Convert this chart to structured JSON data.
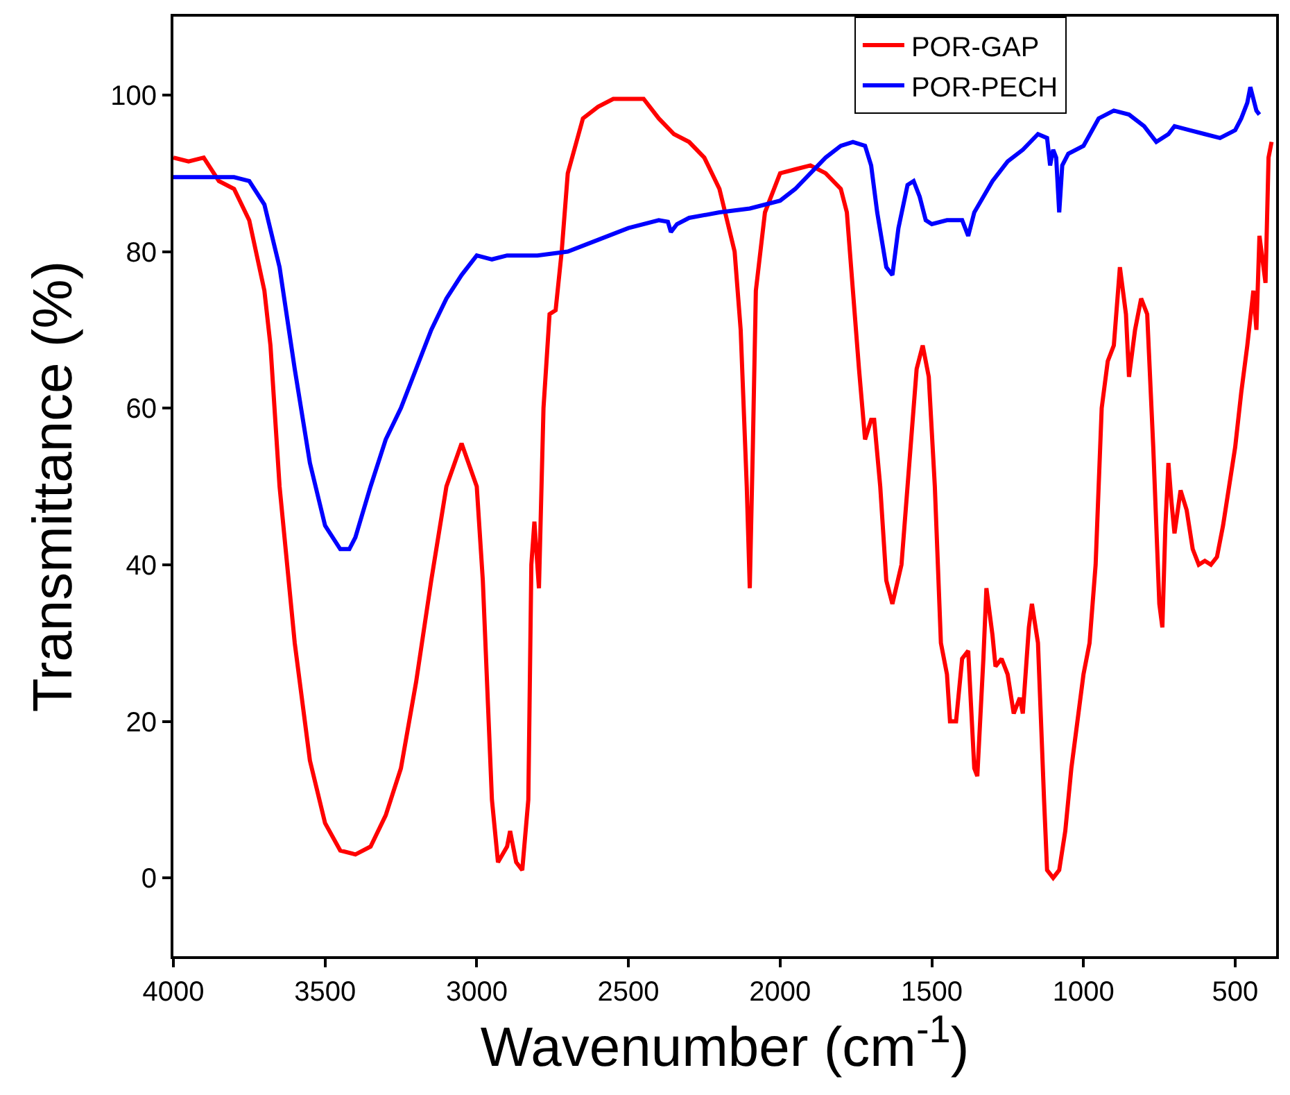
{
  "chart_data": {
    "type": "line",
    "xlabel": "Wavenumber (cm$^{-1}$)",
    "ylabel": "Transmittance (%)",
    "xlim": [
      4000,
      365
    ],
    "xticks": [
      4000,
      3500,
      3000,
      2500,
      2000,
      1500,
      1000,
      500
    ],
    "ylim": [
      -10,
      110
    ],
    "yticks": [
      0,
      20,
      40,
      60,
      80,
      100
    ],
    "legend": "top right",
    "marker": "none",
    "line_style": "solid",
    "series": [
      {
        "name": "POR-GAP",
        "color": "#ff0000",
        "x": [
          4000,
          3950,
          3900,
          3850,
          3800,
          3750,
          3700,
          3680,
          3650,
          3600,
          3550,
          3500,
          3450,
          3400,
          3350,
          3300,
          3250,
          3200,
          3150,
          3100,
          3050,
          3000,
          2980,
          2950,
          2930,
          2900,
          2890,
          2870,
          2850,
          2830,
          2820,
          2810,
          2795,
          2780,
          2760,
          2740,
          2720,
          2700,
          2650,
          2600,
          2550,
          2450,
          2400,
          2350,
          2300,
          2250,
          2200,
          2150,
          2130,
          2110,
          2100,
          2090,
          2080,
          2050,
          2000,
          1950,
          1900,
          1850,
          1800,
          1780,
          1760,
          1740,
          1720,
          1700,
          1690,
          1670,
          1650,
          1630,
          1600,
          1570,
          1550,
          1530,
          1510,
          1490,
          1470,
          1450,
          1440,
          1420,
          1400,
          1380,
          1360,
          1350,
          1330,
          1320,
          1300,
          1290,
          1270,
          1250,
          1230,
          1210,
          1200,
          1180,
          1170,
          1150,
          1130,
          1120,
          1100,
          1080,
          1060,
          1040,
          1020,
          1000,
          980,
          960,
          940,
          920,
          900,
          880,
          860,
          850,
          830,
          810,
          790,
          770,
          750,
          740,
          730,
          720,
          710,
          700,
          680,
          660,
          640,
          620,
          600,
          580,
          560,
          540,
          520,
          500,
          480,
          460,
          440,
          430,
          420,
          400,
          390,
          380
        ],
        "values": [
          92,
          91.5,
          92,
          89,
          88,
          84,
          75,
          68,
          50,
          30,
          15,
          7,
          3.5,
          3,
          4,
          8,
          14,
          25,
          38,
          50,
          55.5,
          50,
          38,
          10,
          2,
          4,
          6,
          2,
          1,
          10,
          40,
          45.5,
          37,
          60,
          72,
          72.5,
          80,
          90,
          97,
          98.5,
          99.5,
          99.5,
          97,
          95,
          94,
          92,
          88,
          80,
          70,
          50,
          37,
          55,
          75,
          85,
          90,
          90.5,
          91,
          90,
          88,
          85,
          75,
          65,
          56,
          58.5,
          58.5,
          50,
          38,
          35,
          40,
          55,
          65,
          68,
          64,
          50,
          30,
          26,
          20,
          20,
          28,
          29,
          14,
          13,
          28,
          37,
          31,
          27,
          28,
          26,
          21,
          23,
          21,
          32,
          35,
          30,
          10,
          1,
          0,
          1,
          6,
          14,
          20,
          26,
          30,
          40,
          60,
          66,
          68,
          78,
          72,
          64,
          70,
          74,
          72,
          55,
          35,
          32,
          45,
          53,
          48,
          44,
          49.5,
          47,
          42,
          40,
          40.5,
          40,
          41,
          45,
          50,
          55,
          62,
          68,
          75,
          70,
          82,
          76,
          92,
          94
        ]
      },
      {
        "name": "POR-PECH",
        "color": "#0000ff",
        "x": [
          4000,
          3900,
          3800,
          3750,
          3700,
          3650,
          3600,
          3550,
          3500,
          3450,
          3420,
          3400,
          3350,
          3300,
          3250,
          3200,
          3150,
          3100,
          3050,
          3000,
          2950,
          2900,
          2850,
          2800,
          2700,
          2600,
          2500,
          2400,
          2370,
          2360,
          2340,
          2300,
          2200,
          2100,
          2000,
          1950,
          1900,
          1850,
          1800,
          1760,
          1720,
          1700,
          1680,
          1650,
          1630,
          1610,
          1580,
          1560,
          1540,
          1520,
          1500,
          1450,
          1400,
          1380,
          1360,
          1300,
          1250,
          1200,
          1150,
          1120,
          1110,
          1100,
          1090,
          1080,
          1070,
          1050,
          1000,
          950,
          900,
          850,
          800,
          760,
          720,
          700,
          650,
          600,
          550,
          500,
          480,
          460,
          450,
          430,
          420
        ],
        "values": [
          89.5,
          89.5,
          89.5,
          89,
          86,
          78,
          65,
          53,
          45,
          42,
          42,
          43.5,
          50,
          56,
          60,
          65,
          70,
          74,
          77,
          79.5,
          79,
          79.5,
          79.5,
          79.5,
          80,
          81.5,
          83,
          84,
          83.8,
          82.5,
          83.5,
          84.3,
          85,
          85.5,
          86.5,
          88,
          90,
          92,
          93.5,
          94,
          93.5,
          91,
          85,
          78,
          77,
          83,
          88.5,
          89,
          87,
          84,
          83.5,
          84,
          84,
          82,
          85,
          89,
          91.5,
          93,
          95,
          94.5,
          91,
          93,
          92,
          85,
          91,
          92.5,
          93.5,
          97,
          98,
          97.5,
          96,
          94,
          95,
          96,
          95.5,
          95,
          94.5,
          95.5,
          97,
          99,
          101,
          98,
          97.5
        ]
      }
    ]
  }
}
